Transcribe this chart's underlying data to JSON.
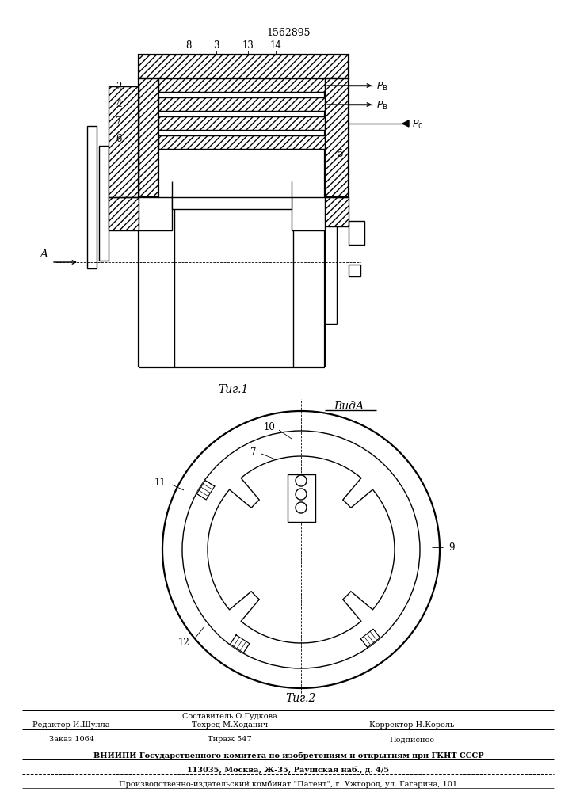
{
  "patent_number": "1562895",
  "fig1_caption": "Τиг.1",
  "fig2_caption": "Τиг.2",
  "vida_label": "ВидА",
  "label_A": "A",
  "bg_color": "#ffffff",
  "line_color": "#000000",
  "footer": {
    "composer": "Составитель О.Гудкова",
    "editor": "Редактор И.Шулла",
    "techred": "Техред М.Ходанич",
    "corrector": "Корректор Н.Король",
    "order": "Заказ 1064",
    "tirazh": "Тираж 547",
    "podpisnoe": "Подписное",
    "vnipi": "ВНИИПИ Государственного комитета по изобретениям и открытиям при ГКНТ СССР",
    "address": "113035, Москва, Ж-35, Раушская наб., д. 4/5",
    "plant": "Производственно-издательский комбинат \"Патент\", г. Ужгород, ул. Гагарина, 101"
  }
}
